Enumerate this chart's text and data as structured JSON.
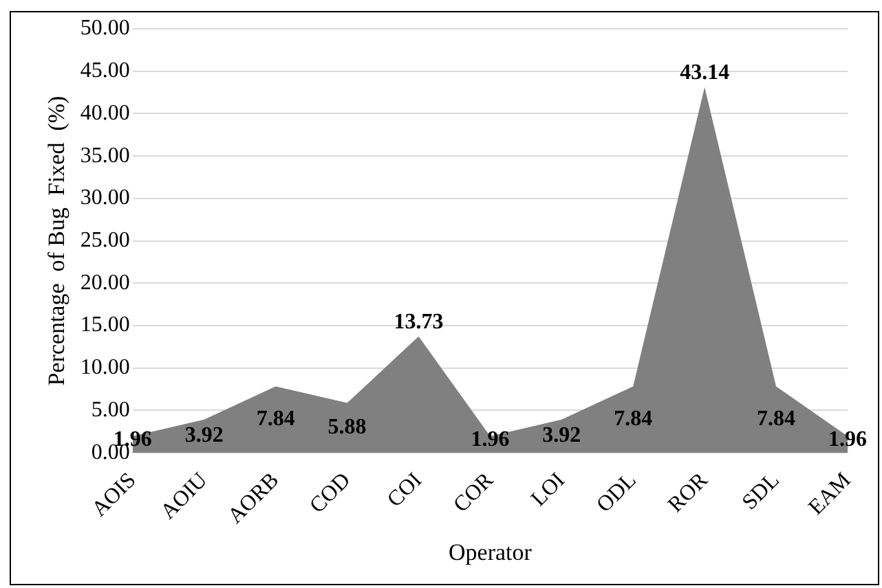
{
  "chart_data": {
    "type": "area",
    "xlabel": "Operator",
    "ylabel": "Percentage  of Bug  Fixed  (%)",
    "categories": [
      "AOIS",
      "AOIU",
      "AORB",
      "COD",
      "COI",
      "COR",
      "LOI",
      "ODL",
      "ROR",
      "SDL",
      "EAM"
    ],
    "values": [
      1.96,
      3.92,
      7.84,
      5.88,
      13.73,
      1.96,
      3.92,
      7.84,
      43.14,
      7.84,
      1.96
    ],
    "color": "#808080",
    "ylim": [
      0,
      50
    ],
    "yticks": [
      {
        "value": 0,
        "label": "0.00"
      },
      {
        "value": 5,
        "label": "5.00"
      },
      {
        "value": 10,
        "label": "10.00"
      },
      {
        "value": 15,
        "label": "15.00"
      },
      {
        "value": 20,
        "label": "20.00"
      },
      {
        "value": 25,
        "label": "25.00"
      },
      {
        "value": 30,
        "label": "30.00"
      },
      {
        "value": 35,
        "label": "35.00"
      },
      {
        "value": 40,
        "label": "40.00"
      },
      {
        "value": 45,
        "label": "45.00"
      },
      {
        "value": 50,
        "label": "50.00"
      }
    ],
    "grid": "y",
    "data_labels": true,
    "legend": false
  }
}
